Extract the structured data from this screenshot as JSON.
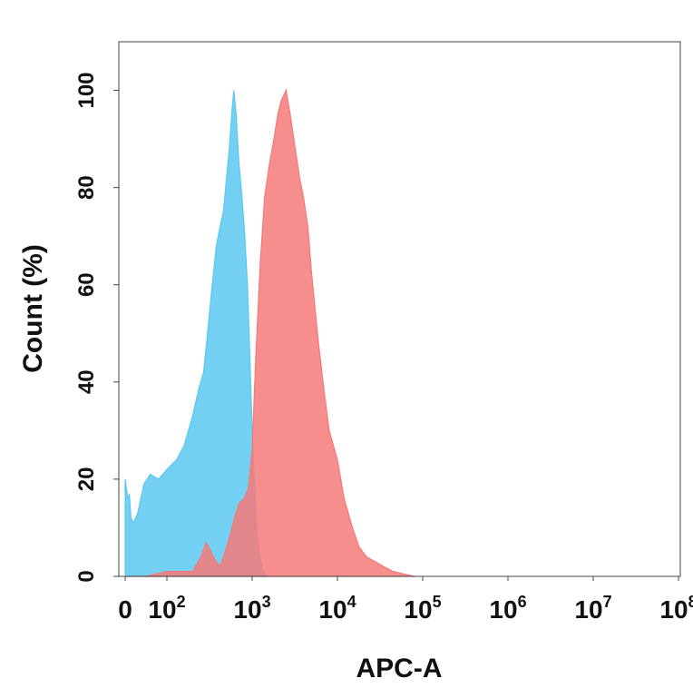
{
  "chart_data": {
    "type": "area",
    "title": "",
    "xlabel": "APC-A",
    "ylabel": "Count  (%)",
    "xscale": "biexponential",
    "xlim": [
      0,
      100000000
    ],
    "ylim": [
      0,
      110
    ],
    "grid": false,
    "legend": "none",
    "yticks": [
      {
        "value": 0,
        "label": "0"
      },
      {
        "value": 20,
        "label": "20"
      },
      {
        "value": 40,
        "label": "40"
      },
      {
        "value": 60,
        "label": "60"
      },
      {
        "value": 80,
        "label": "80"
      },
      {
        "value": 100,
        "label": "100"
      }
    ],
    "xticks": [
      {
        "value": 0,
        "base": "0",
        "exp": ""
      },
      {
        "value": 100,
        "base": "10",
        "exp": "2"
      },
      {
        "value": 1000,
        "base": "10",
        "exp": "3"
      },
      {
        "value": 10000,
        "base": "10",
        "exp": "4"
      },
      {
        "value": 100000,
        "base": "10",
        "exp": "5"
      },
      {
        "value": 1000000,
        "base": "10",
        "exp": "6"
      },
      {
        "value": 10000000,
        "base": "10",
        "exp": "7"
      },
      {
        "value": 100000000,
        "base": "10",
        "exp": "8"
      }
    ],
    "series": [
      {
        "color": "#5bc8f0",
        "opacity": 0.85,
        "points": [
          [
            0,
            20
          ],
          [
            6,
            16
          ],
          [
            10,
            17
          ],
          [
            14,
            12
          ],
          [
            20,
            11
          ],
          [
            30,
            13
          ],
          [
            45,
            19
          ],
          [
            60,
            21
          ],
          [
            80,
            20
          ],
          [
            100,
            22
          ],
          [
            130,
            24
          ],
          [
            160,
            27
          ],
          [
            200,
            33
          ],
          [
            240,
            39
          ],
          [
            270,
            42
          ],
          [
            300,
            50
          ],
          [
            340,
            60
          ],
          [
            380,
            68
          ],
          [
            420,
            72
          ],
          [
            460,
            75
          ],
          [
            500,
            82
          ],
          [
            540,
            88
          ],
          [
            580,
            96
          ],
          [
            610,
            100
          ],
          [
            650,
            95
          ],
          [
            700,
            85
          ],
          [
            760,
            78
          ],
          [
            820,
            70
          ],
          [
            880,
            60
          ],
          [
            940,
            45
          ],
          [
            1000,
            30
          ],
          [
            1070,
            18
          ],
          [
            1150,
            8
          ],
          [
            1250,
            3
          ],
          [
            1350,
            1
          ],
          [
            1500,
            0
          ]
        ]
      },
      {
        "color": "#f47a7a",
        "opacity": 0.85,
        "points": [
          [
            0,
            0
          ],
          [
            50,
            0
          ],
          [
            100,
            1
          ],
          [
            150,
            1
          ],
          [
            200,
            1
          ],
          [
            250,
            4
          ],
          [
            290,
            7
          ],
          [
            330,
            5
          ],
          [
            380,
            3
          ],
          [
            420,
            2
          ],
          [
            460,
            4
          ],
          [
            500,
            6
          ],
          [
            560,
            9
          ],
          [
            620,
            12
          ],
          [
            700,
            15
          ],
          [
            800,
            16
          ],
          [
            900,
            18
          ],
          [
            1000,
            26
          ],
          [
            1100,
            45
          ],
          [
            1250,
            65
          ],
          [
            1400,
            78
          ],
          [
            1600,
            85
          ],
          [
            1800,
            90
          ],
          [
            2000,
            95
          ],
          [
            2200,
            98
          ],
          [
            2500,
            100
          ],
          [
            2800,
            95
          ],
          [
            3200,
            88
          ],
          [
            3600,
            82
          ],
          [
            4000,
            78
          ],
          [
            4500,
            72
          ],
          [
            5000,
            62
          ],
          [
            6000,
            48
          ],
          [
            7000,
            38
          ],
          [
            8000,
            30
          ],
          [
            10000,
            24
          ],
          [
            12000,
            16
          ],
          [
            15000,
            10
          ],
          [
            18000,
            6
          ],
          [
            22000,
            4
          ],
          [
            28000,
            3
          ],
          [
            35000,
            2
          ],
          [
            45000,
            1
          ],
          [
            60000,
            0.5
          ],
          [
            80000,
            0
          ]
        ]
      }
    ]
  }
}
